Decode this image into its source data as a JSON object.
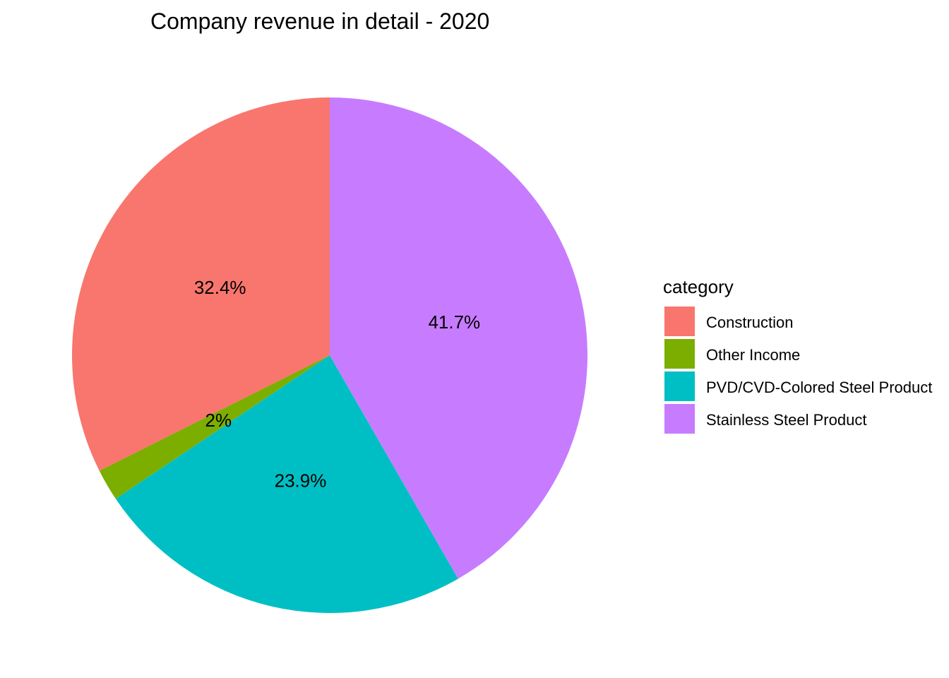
{
  "chart_data": {
    "type": "pie",
    "title": "Company revenue in detail - 2020",
    "legend_title": "category",
    "legend_position": "right",
    "start": "12 o'clock",
    "direction": "counterclockwise",
    "slices": [
      {
        "category": "Construction",
        "value": 32.4,
        "label": "32.4%",
        "color": "#F8766D"
      },
      {
        "category": "Other Income",
        "value": 2.0,
        "label": "2%",
        "color": "#7CAE00"
      },
      {
        "category": "PVD/CVD-Colored Steel Product",
        "value": 23.9,
        "label": "23.9%",
        "color": "#00BFC4"
      },
      {
        "category": "Stainless Steel Product",
        "value": 41.7,
        "label": "41.7%",
        "color": "#C77CFF"
      }
    ]
  }
}
